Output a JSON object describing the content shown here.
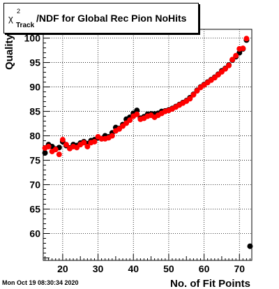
{
  "header": {
    "title_symbol": "χ",
    "title_superscript": "2",
    "title_subscript": "Track",
    "title_text": "/NDF for Global Rec Pion NoHits"
  },
  "footer": {
    "timestamp": "Mon Oct 19 08:30:34 2020"
  },
  "chart_data": {
    "type": "scatter",
    "title": "χ²_Track/NDF for Global Rec Pion NoHits",
    "xlabel": "No. of Fit Points",
    "ylabel": "Quality",
    "xlim": [
      14.5,
      73.5
    ],
    "ylim": [
      54.5,
      101.8
    ],
    "grid": true,
    "x_ticks": [
      20,
      30,
      40,
      50,
      60,
      70
    ],
    "x_tick_labels": [
      "20",
      "30",
      "40",
      "50",
      "60",
      "70"
    ],
    "y_ticks": [
      60,
      65,
      70,
      75,
      80,
      85,
      90,
      95,
      100
    ],
    "y_tick_labels": [
      "60",
      "65",
      "70",
      "75",
      "80",
      "85",
      "90",
      "95",
      "100"
    ],
    "series": [
      {
        "color": "#000000",
        "points": [
          [
            15,
            76.5
          ],
          [
            16,
            78.2
          ],
          [
            17,
            77.8
          ],
          [
            18,
            77.3
          ],
          [
            19,
            77.6
          ],
          [
            20,
            78.8
          ],
          [
            21,
            78.0
          ],
          [
            22,
            77.5
          ],
          [
            23,
            78.2
          ],
          [
            24,
            78.0
          ],
          [
            25,
            78.5
          ],
          [
            26,
            78.8
          ],
          [
            27,
            78.4
          ],
          [
            28,
            79.0
          ],
          [
            29,
            79.2
          ],
          [
            30,
            79.6
          ],
          [
            31,
            79.4
          ],
          [
            32,
            80.0
          ],
          [
            33,
            79.8
          ],
          [
            34,
            80.6
          ],
          [
            35,
            81.7
          ],
          [
            36,
            81.5
          ],
          [
            37,
            82.3
          ],
          [
            38,
            83.4
          ],
          [
            39,
            83.8
          ],
          [
            40,
            84.6
          ],
          [
            41,
            85.2
          ],
          [
            42,
            83.6
          ],
          [
            43,
            83.9
          ],
          [
            44,
            84.4
          ],
          [
            45,
            84.5
          ],
          [
            46,
            84.5
          ],
          [
            47,
            84.6
          ],
          [
            48,
            85.0
          ],
          [
            49,
            85.1
          ],
          [
            50,
            85.3
          ],
          [
            51,
            85.6
          ],
          [
            52,
            86.0
          ],
          [
            53,
            86.4
          ],
          [
            54,
            86.8
          ],
          [
            55,
            87.2
          ],
          [
            56,
            87.8
          ],
          [
            57,
            88.5
          ],
          [
            58,
            89.3
          ],
          [
            59,
            90.0
          ],
          [
            60,
            90.5
          ],
          [
            61,
            91.0
          ],
          [
            62,
            91.5
          ],
          [
            63,
            92.0
          ],
          [
            64,
            92.6
          ],
          [
            65,
            93.3
          ],
          [
            66,
            93.8
          ],
          [
            67,
            94.5
          ],
          [
            68,
            95.5
          ],
          [
            69,
            96.2
          ],
          [
            70,
            97.0
          ],
          [
            71,
            97.8
          ],
          [
            72,
            99.6
          ],
          [
            73,
            57.4
          ]
        ]
      },
      {
        "color": "#ff0000",
        "points": [
          [
            15,
            77.5
          ],
          [
            16,
            77.8
          ],
          [
            17,
            76.8
          ],
          [
            18,
            77.2
          ],
          [
            19,
            76.2
          ],
          [
            20,
            79.2
          ],
          [
            21,
            78.2
          ],
          [
            22,
            77.4
          ],
          [
            23,
            77.8
          ],
          [
            24,
            77.6
          ],
          [
            25,
            78.2
          ],
          [
            26,
            78.6
          ],
          [
            27,
            77.8
          ],
          [
            28,
            78.6
          ],
          [
            29,
            78.8
          ],
          [
            30,
            79.8
          ],
          [
            31,
            79.4
          ],
          [
            32,
            79.4
          ],
          [
            33,
            79.6
          ],
          [
            34,
            80.0
          ],
          [
            35,
            81.0
          ],
          [
            36,
            81.4
          ],
          [
            37,
            82.0
          ],
          [
            38,
            82.6
          ],
          [
            39,
            83.2
          ],
          [
            40,
            84.0
          ],
          [
            41,
            84.4
          ],
          [
            42,
            83.4
          ],
          [
            43,
            83.6
          ],
          [
            44,
            84.0
          ],
          [
            45,
            84.2
          ],
          [
            46,
            83.8
          ],
          [
            47,
            84.2
          ],
          [
            48,
            84.6
          ],
          [
            49,
            85.0
          ],
          [
            50,
            85.2
          ],
          [
            51,
            85.5
          ],
          [
            52,
            85.9
          ],
          [
            53,
            86.3
          ],
          [
            54,
            86.7
          ],
          [
            55,
            87.1
          ],
          [
            56,
            87.6
          ],
          [
            57,
            88.4
          ],
          [
            58,
            89.2
          ],
          [
            59,
            89.9
          ],
          [
            60,
            90.4
          ],
          [
            61,
            90.9
          ],
          [
            62,
            91.4
          ],
          [
            63,
            91.9
          ],
          [
            64,
            92.5
          ],
          [
            65,
            93.1
          ],
          [
            66,
            93.7
          ],
          [
            67,
            94.4
          ],
          [
            68,
            95.6
          ],
          [
            69,
            96.4
          ],
          [
            70,
            97.8
          ],
          [
            71,
            97.9
          ],
          [
            72,
            99.9
          ]
        ]
      }
    ]
  }
}
